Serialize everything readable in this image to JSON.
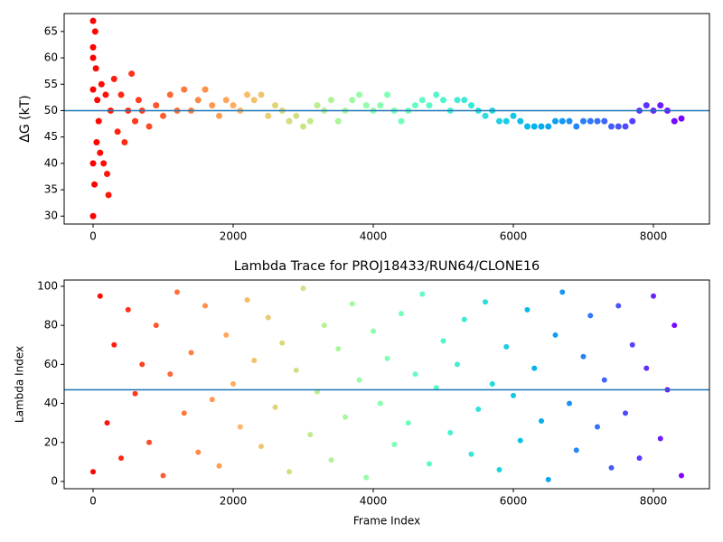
{
  "chart_data": [
    {
      "type": "scatter",
      "ylabel": "ΔG (kT)",
      "colormap": "rainbow_r",
      "hline": 50,
      "hline_color": "#1f77b4",
      "xlim": [
        -413,
        8800
      ],
      "ylim": [
        28.5,
        68.4
      ],
      "xticks": [
        0,
        2000,
        4000,
        6000,
        8000
      ],
      "yticks": [
        30,
        35,
        40,
        45,
        50,
        55,
        60,
        65
      ],
      "x": [
        0,
        0,
        0,
        0,
        0,
        0,
        20,
        30,
        40,
        50,
        60,
        80,
        100,
        120,
        150,
        180,
        200,
        220,
        250,
        300,
        350,
        400,
        450,
        500,
        550,
        600,
        650,
        700,
        800,
        900,
        1000,
        1100,
        1200,
        1300,
        1400,
        1500,
        1600,
        1700,
        1800,
        1900,
        2000,
        2100,
        2200,
        2300,
        2400,
        2500,
        2600,
        2700,
        2800,
        2900,
        3000,
        3100,
        3200,
        3300,
        3400,
        3500,
        3600,
        3700,
        3800,
        3900,
        4000,
        4100,
        4200,
        4300,
        4400,
        4500,
        4600,
        4700,
        4800,
        4900,
        5000,
        5100,
        5200,
        5300,
        5400,
        5500,
        5600,
        5700,
        5800,
        5900,
        6000,
        6100,
        6200,
        6300,
        6400,
        6500,
        6600,
        6700,
        6800,
        6900,
        7000,
        7100,
        7200,
        7300,
        7400,
        7500,
        7600,
        7700,
        7800,
        7900,
        8000,
        8100,
        8200,
        8300,
        8400
      ],
      "values": [
        30,
        40,
        62,
        67,
        54,
        60,
        36,
        65,
        58,
        44,
        52,
        48,
        42,
        55,
        40,
        53,
        38,
        34,
        50,
        56,
        46,
        53,
        44,
        50,
        57,
        48,
        52,
        50,
        47,
        51,
        49,
        53,
        50,
        54,
        50,
        52,
        54,
        51,
        49,
        52,
        51,
        50,
        53,
        52,
        53,
        49,
        51,
        50,
        48,
        49,
        47,
        48,
        51,
        50,
        52,
        48,
        50,
        52,
        53,
        51,
        50,
        51,
        53,
        50,
        48,
        50,
        51,
        52,
        51,
        53,
        52,
        50,
        52,
        52,
        51,
        50,
        49,
        50,
        48,
        48,
        49,
        48,
        47,
        47,
        47,
        47,
        48,
        48,
        48,
        47,
        48,
        48,
        48,
        48,
        47,
        47,
        47,
        48,
        50,
        51,
        50,
        51,
        50,
        48,
        48.5
      ]
    },
    {
      "type": "scatter",
      "title": "Lambda Trace for PROJ18433/RUN64/CLONE16",
      "xlabel": "Frame Index",
      "ylabel": "Lambda Index",
      "colormap": "rainbow_r",
      "hline": 47,
      "hline_color": "#1f77b4",
      "xlim": [
        -413,
        8800
      ],
      "ylim": [
        -3.7,
        103.2
      ],
      "xticks": [
        0,
        2000,
        4000,
        6000,
        8000
      ],
      "yticks": [
        0,
        20,
        40,
        60,
        80,
        100
      ],
      "x": [
        0,
        100,
        200,
        300,
        400,
        500,
        600,
        700,
        800,
        900,
        1000,
        1100,
        1200,
        1300,
        1400,
        1500,
        1600,
        1700,
        1800,
        1900,
        2000,
        2100,
        2200,
        2300,
        2400,
        2500,
        2600,
        2700,
        2800,
        2900,
        3000,
        3100,
        3200,
        3300,
        3400,
        3500,
        3600,
        3700,
        3800,
        3900,
        4000,
        4100,
        4200,
        4300,
        4400,
        4500,
        4600,
        4700,
        4800,
        4900,
        5000,
        5100,
        5200,
        5300,
        5400,
        5500,
        5600,
        5700,
        5800,
        5900,
        6000,
        6100,
        6200,
        6300,
        6400,
        6500,
        6600,
        6700,
        6800,
        6900,
        7000,
        7100,
        7200,
        7300,
        7400,
        7500,
        7600,
        7700,
        7800,
        7900,
        8000,
        8100,
        8200,
        8300,
        8400
      ],
      "values": [
        5,
        95,
        30,
        70,
        12,
        88,
        45,
        60,
        20,
        80,
        3,
        55,
        97,
        35,
        66,
        15,
        90,
        42,
        8,
        75,
        50,
        28,
        93,
        62,
        18,
        84,
        38,
        71,
        5,
        57,
        99,
        24,
        46,
        80,
        11,
        68,
        33,
        91,
        52,
        2,
        77,
        40,
        63,
        19,
        86,
        30,
        55,
        96,
        9,
        48,
        72,
        25,
        60,
        83,
        14,
        37,
        92,
        50,
        6,
        69,
        44,
        21,
        88,
        58,
        31,
        1,
        75,
        97,
        40,
        16,
        64,
        85,
        28,
        52,
        7,
        90,
        35,
        70,
        12,
        58,
        95,
        22,
        47,
        80,
        3
      ]
    }
  ]
}
